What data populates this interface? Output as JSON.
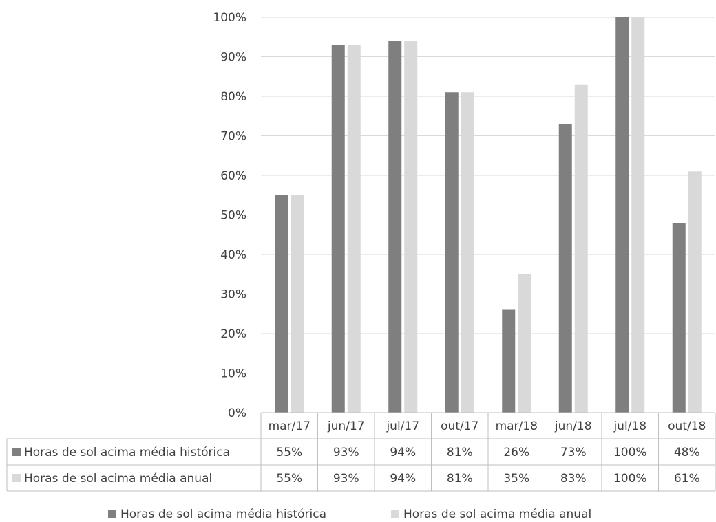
{
  "chart_data": {
    "type": "bar",
    "categories": [
      "mar/17",
      "jun/17",
      "jul/17",
      "out/17",
      "mar/18",
      "jun/18",
      "jul/18",
      "out/18"
    ],
    "series": [
      {
        "name": "Horas de sol acima média histórica",
        "values": [
          55,
          93,
          94,
          81,
          26,
          73,
          100,
          48
        ],
        "labels": [
          "55%",
          "93%",
          "94%",
          "81%",
          "26%",
          "73%",
          "100%",
          "48%"
        ],
        "color": "#7f7f7f"
      },
      {
        "name": "Horas de sol acima média anual",
        "values": [
          55,
          93,
          94,
          81,
          35,
          83,
          100,
          61
        ],
        "labels": [
          "55%",
          "93%",
          "94%",
          "81%",
          "35%",
          "83%",
          "100%",
          "61%"
        ],
        "color": "#d9d9d9"
      }
    ],
    "y_ticks": [
      "0%",
      "10%",
      "20%",
      "30%",
      "40%",
      "50%",
      "60%",
      "70%",
      "80%",
      "90%",
      "100%"
    ],
    "ylim": [
      0,
      100
    ],
    "grid": true,
    "legend": "bottom",
    "data_table": true
  }
}
